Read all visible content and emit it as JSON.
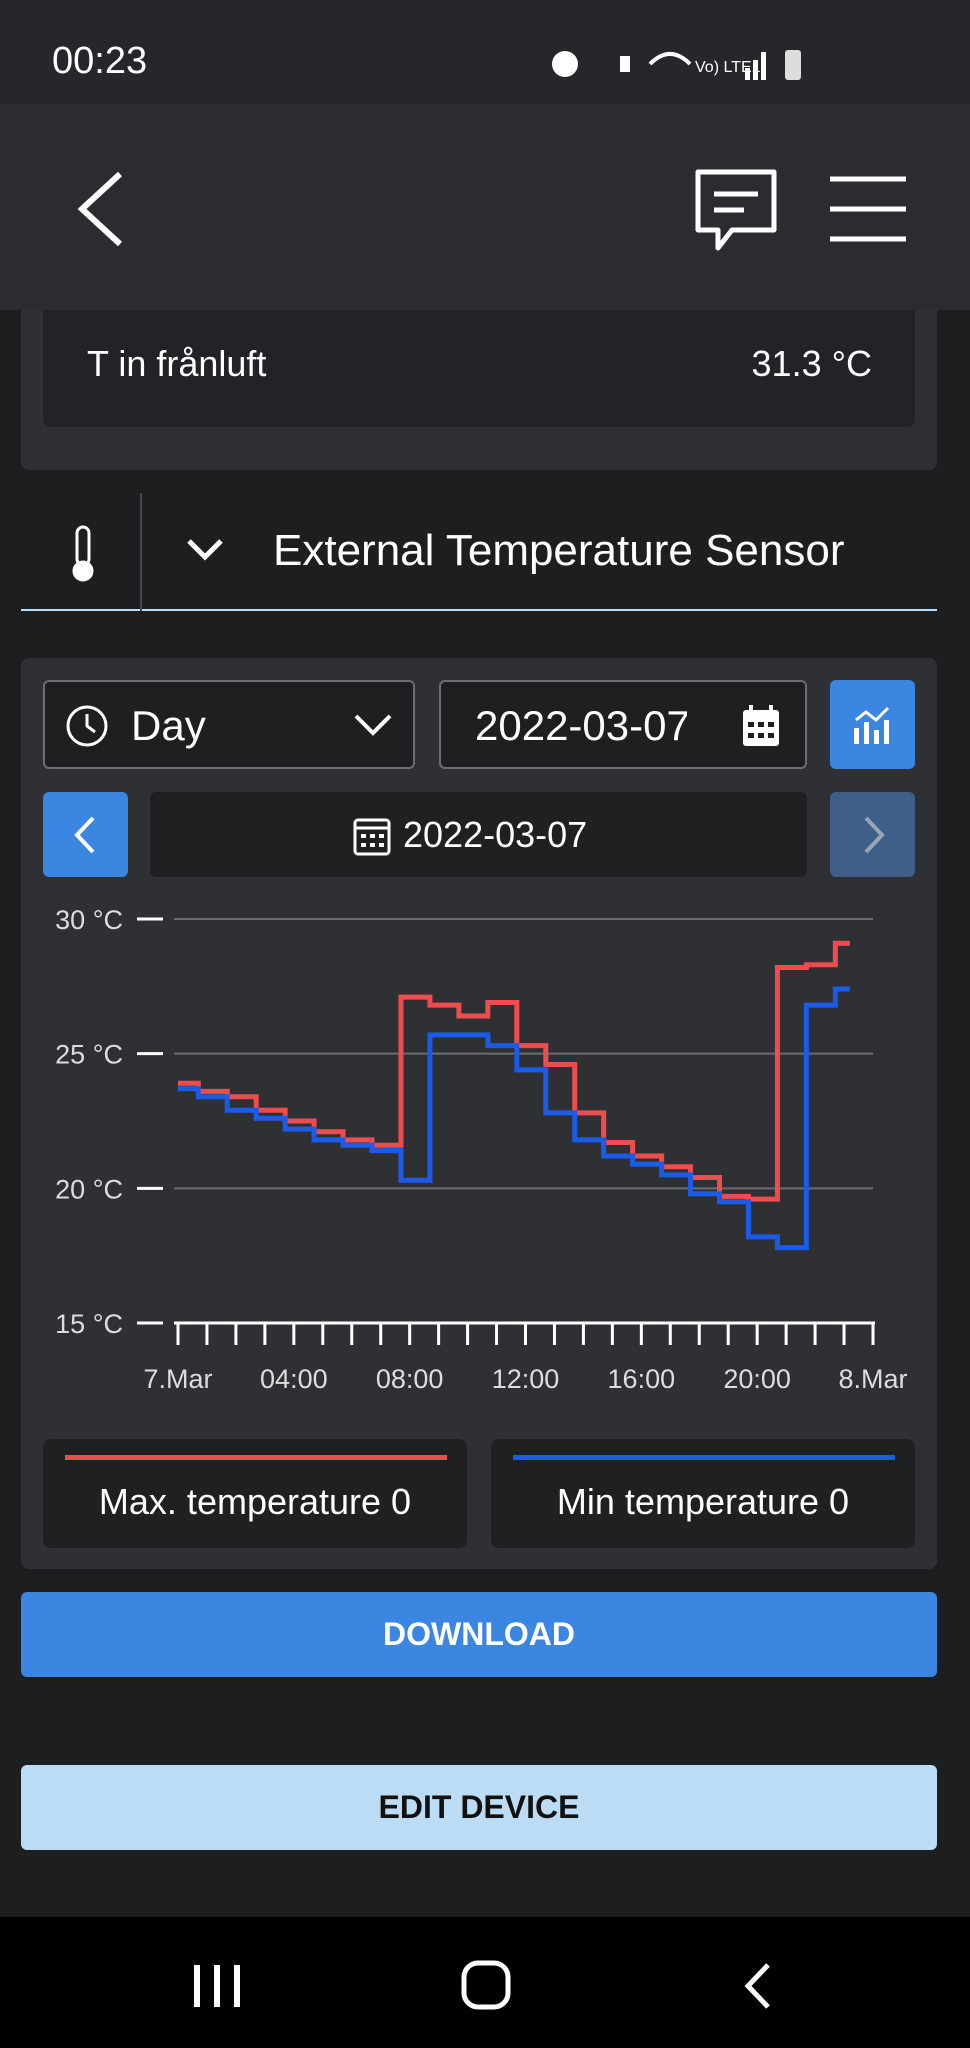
{
  "status_bar": {
    "time": "00:23"
  },
  "section": {
    "label": "T in frånluft",
    "value": "31.3 °C"
  },
  "sensor": {
    "title": "External Temperature Sensor"
  },
  "controls": {
    "period": "Day",
    "date_input": "2022-03-07",
    "current_date": "2022-03-07"
  },
  "chart_data": {
    "type": "line",
    "step": "after",
    "x": [
      0,
      0.7,
      1.7,
      2.7,
      3.7,
      4.7,
      5.7,
      6.7,
      7.7,
      8.7,
      9.7,
      10.7,
      11.7,
      12.7,
      13.7,
      14.7,
      15.7,
      16.7,
      17.7,
      18.7,
      19.7,
      20.7,
      21.7,
      22.7,
      23.2
    ],
    "series": [
      {
        "name": "Max. temperature 0",
        "color": "#ef4d4d",
        "values": [
          23.9,
          23.6,
          23.4,
          22.9,
          22.5,
          22.1,
          21.8,
          21.6,
          27.1,
          26.8,
          26.4,
          26.9,
          25.3,
          24.6,
          22.8,
          21.7,
          21.2,
          20.8,
          20.4,
          19.7,
          19.6,
          28.2,
          28.3,
          29.1,
          29.1
        ]
      },
      {
        "name": "Min temperature 0",
        "color": "#1a5ce8",
        "values": [
          23.7,
          23.4,
          22.9,
          22.6,
          22.2,
          21.8,
          21.6,
          21.4,
          20.3,
          25.7,
          25.7,
          25.3,
          24.4,
          22.8,
          21.8,
          21.2,
          20.9,
          20.5,
          19.8,
          19.5,
          18.2,
          17.8,
          26.8,
          27.4,
          27.4
        ]
      }
    ],
    "xlim": [
      0,
      24
    ],
    "ylim": [
      15,
      30
    ],
    "xticks": [
      {
        "value": 0,
        "label": "7.Mar"
      },
      {
        "value": 1,
        "label": null
      },
      {
        "value": 2,
        "label": null
      },
      {
        "value": 3,
        "label": null
      },
      {
        "value": 4,
        "label": "04:00"
      },
      {
        "value": 5,
        "label": null
      },
      {
        "value": 6,
        "label": null
      },
      {
        "value": 7,
        "label": null
      },
      {
        "value": 8,
        "label": "08:00"
      },
      {
        "value": 9,
        "label": null
      },
      {
        "value": 10,
        "label": null
      },
      {
        "value": 11,
        "label": null
      },
      {
        "value": 12,
        "label": "12:00"
      },
      {
        "value": 13,
        "label": null
      },
      {
        "value": 14,
        "label": null
      },
      {
        "value": 15,
        "label": null
      },
      {
        "value": 16,
        "label": "16:00"
      },
      {
        "value": 17,
        "label": null
      },
      {
        "value": 18,
        "label": null
      },
      {
        "value": 19,
        "label": null
      },
      {
        "value": 20,
        "label": "20:00"
      },
      {
        "value": 21,
        "label": null
      },
      {
        "value": 22,
        "label": null
      },
      {
        "value": 23,
        "label": null
      },
      {
        "value": 24,
        "label": "8.Mar"
      }
    ],
    "yticks": [
      {
        "value": 15,
        "label": "15 °C"
      },
      {
        "value": 20,
        "label": "20 °C"
      },
      {
        "value": 25,
        "label": "25 °C"
      },
      {
        "value": 30,
        "label": "30 °C"
      }
    ],
    "grid": true
  },
  "buttons": {
    "download": "DOWNLOAD",
    "edit": "EDIT DEVICE"
  }
}
